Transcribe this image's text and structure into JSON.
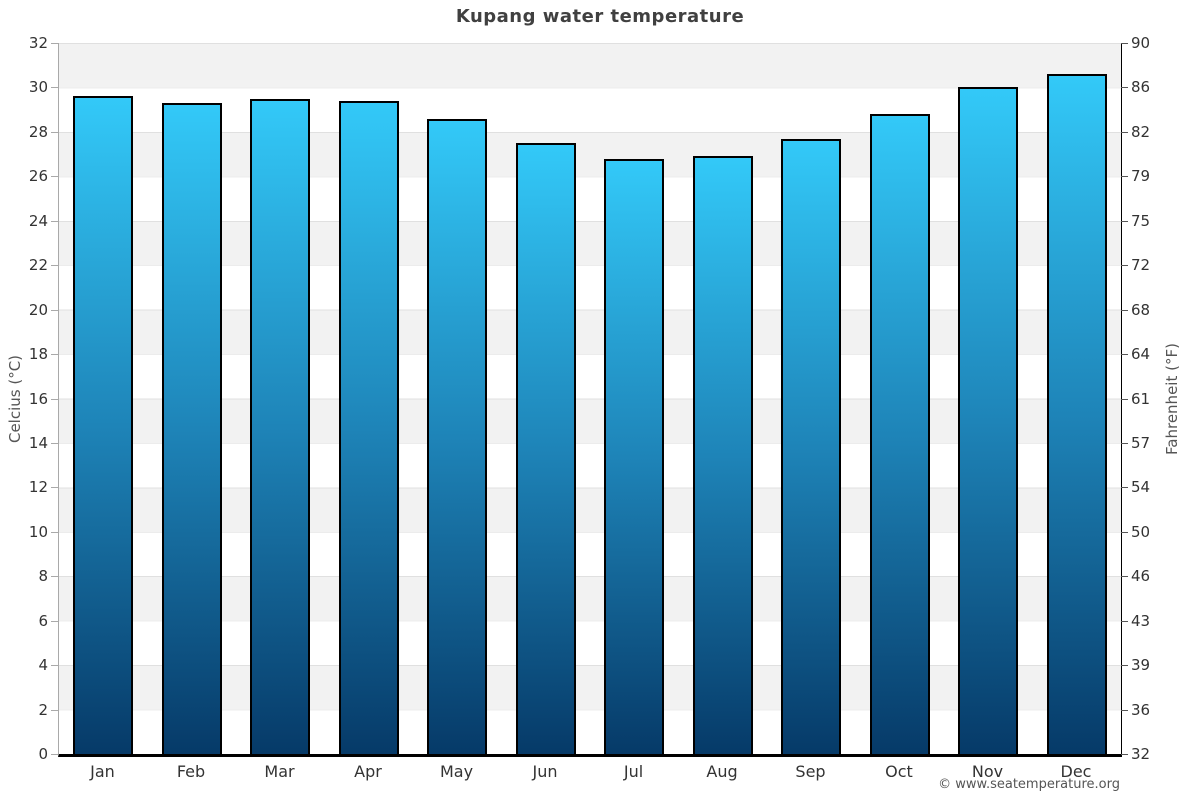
{
  "page": {
    "title": "Kupang water temperature",
    "footer": "© www.seatemperature.org"
  },
  "chart_data": {
    "type": "bar",
    "title": "Kupang water temperature",
    "series_name": "Water temperature",
    "categories": [
      "Jan",
      "Feb",
      "Mar",
      "Apr",
      "May",
      "Jun",
      "Jul",
      "Aug",
      "Sep",
      "Oct",
      "Nov",
      "Dec"
    ],
    "values": [
      29.6,
      29.3,
      29.5,
      29.4,
      28.6,
      27.5,
      26.8,
      26.9,
      27.7,
      28.8,
      30.0,
      30.6
    ],
    "unit": "°C",
    "left_axis": {
      "label": "Celcius (°C)",
      "min": 0,
      "max": 32,
      "ticks": [
        0,
        2,
        4,
        6,
        8,
        10,
        12,
        14,
        16,
        18,
        20,
        22,
        24,
        26,
        28,
        30,
        32
      ]
    },
    "right_axis": {
      "label": "Fahrenheit (°F)",
      "ticks": [
        32,
        36,
        39,
        43,
        46,
        50,
        54,
        57,
        61,
        64,
        68,
        72,
        75,
        79,
        82,
        86,
        90
      ]
    },
    "legend": "none",
    "grid": "alternating-horizontal-bands",
    "colors": {
      "bar_gradient_top": "#33c9f8",
      "bar_gradient_mid": "#1e84b8",
      "bar_gradient_bottom": "#063a68",
      "bar_border": "#000000",
      "band_gray": "#f2f2f2",
      "gridline": "#e7e7e7",
      "title_text": "#404040",
      "tick_text": "#333333",
      "axis_label_text": "#555555",
      "footer_text": "#555555"
    }
  }
}
